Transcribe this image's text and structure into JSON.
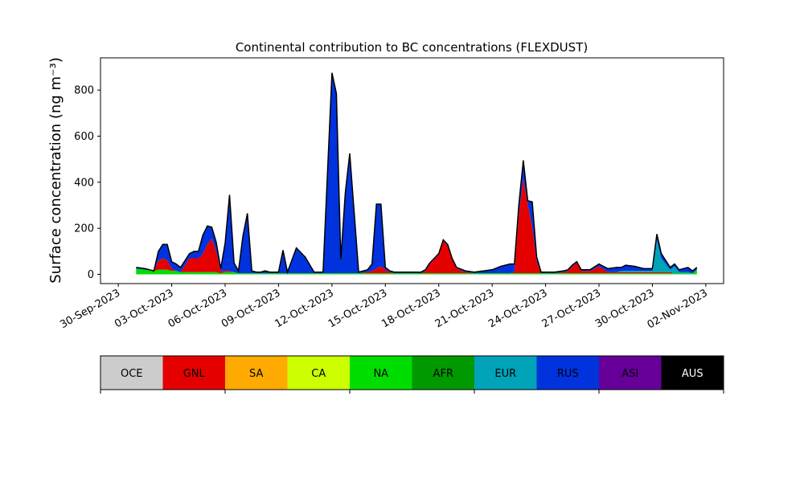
{
  "chart_data": {
    "type": "area",
    "title": "Continental contribution to BC concentrations (FLEXDUST)",
    "ylabel": "Surface concentration (ng m⁻³)",
    "xlabel": "",
    "xlim": [
      "2023-09-29",
      "2023-11-03"
    ],
    "ylim": [
      -40,
      940
    ],
    "y_ticks": [
      0,
      200,
      400,
      600,
      800
    ],
    "x_ticks": [
      "30-Sep-2023",
      "03-Oct-2023",
      "06-Oct-2023",
      "09-Oct-2023",
      "12-Oct-2023",
      "15-Oct-2023",
      "18-Oct-2023",
      "21-Oct-2023",
      "24-Oct-2023",
      "27-Oct-2023",
      "30-Oct-2023",
      "02-Nov-2023"
    ],
    "x": [
      "2023-10-01",
      "2023-10-01T12",
      "2023-10-02",
      "2023-10-02T06",
      "2023-10-02T12",
      "2023-10-02T18",
      "2023-10-03",
      "2023-10-03T06",
      "2023-10-03T12",
      "2023-10-04",
      "2023-10-04T06",
      "2023-10-04T12",
      "2023-10-04T18",
      "2023-10-05",
      "2023-10-05T06",
      "2023-10-05T12",
      "2023-10-05T18",
      "2023-10-06",
      "2023-10-06T06",
      "2023-10-06T12",
      "2023-10-06T18",
      "2023-10-07",
      "2023-10-07T06",
      "2023-10-07T12",
      "2023-10-07T18",
      "2023-10-08",
      "2023-10-08T06",
      "2023-10-08T12",
      "2023-10-08T18",
      "2023-10-09",
      "2023-10-09T06",
      "2023-10-09T12",
      "2023-10-10",
      "2023-10-10T12",
      "2023-10-11",
      "2023-10-11T06",
      "2023-10-11T12",
      "2023-10-12",
      "2023-10-12T06",
      "2023-10-12T12",
      "2023-10-12T18",
      "2023-10-13",
      "2023-10-13T12",
      "2023-10-14",
      "2023-10-14T06",
      "2023-10-14T12",
      "2023-10-14T18",
      "2023-10-15",
      "2023-10-15T06",
      "2023-10-15T12",
      "2023-10-15T18",
      "2023-10-16",
      "2023-10-16T06",
      "2023-10-16T12",
      "2023-10-16T18",
      "2023-10-17",
      "2023-10-17T06",
      "2023-10-17T12",
      "2023-10-17T18",
      "2023-10-18",
      "2023-10-18T06",
      "2023-10-18T12",
      "2023-10-18T18",
      "2023-10-19",
      "2023-10-19T12",
      "2023-10-20",
      "2023-10-20T12",
      "2023-10-21",
      "2023-10-21T12",
      "2023-10-22",
      "2023-10-22T06",
      "2023-10-22T12",
      "2023-10-22T18",
      "2023-10-23",
      "2023-10-23T06",
      "2023-10-23T12",
      "2023-10-23T18",
      "2023-10-24",
      "2023-10-24T12",
      "2023-10-25",
      "2023-10-25T06",
      "2023-10-25T12",
      "2023-10-25T18",
      "2023-10-26",
      "2023-10-26T12",
      "2023-10-27",
      "2023-10-27T12",
      "2023-10-28",
      "2023-10-28T06",
      "2023-10-28T12",
      "2023-10-29",
      "2023-10-29T12",
      "2023-10-30",
      "2023-10-30T06",
      "2023-10-30T12",
      "2023-10-31",
      "2023-10-31T06",
      "2023-10-31T12",
      "2023-11-01",
      "2023-11-01T06",
      "2023-11-01T12"
    ],
    "series": [
      {
        "name": "NA",
        "color": "#00dd00",
        "values": [
          25,
          20,
          15,
          20,
          20,
          20,
          15,
          15,
          10,
          10,
          10,
          10,
          10,
          10,
          10,
          10,
          5,
          10,
          10,
          10,
          5,
          5,
          5,
          5,
          5,
          5,
          5,
          5,
          5,
          5,
          5,
          5,
          5,
          5,
          5,
          5,
          5,
          5,
          5,
          5,
          5,
          5,
          5,
          5,
          5,
          5,
          5,
          5,
          5,
          5,
          5,
          5,
          5,
          5,
          5,
          5,
          5,
          5,
          5,
          5,
          5,
          5,
          5,
          5,
          5,
          5,
          5,
          5,
          5,
          5,
          5,
          5,
          5,
          5,
          5,
          5,
          5,
          5,
          5,
          5,
          5,
          5,
          5,
          5,
          5,
          5,
          5,
          5,
          5,
          5,
          5,
          5,
          5,
          5,
          5,
          5,
          5,
          5,
          5,
          5,
          20
        ]
      },
      {
        "name": "GNL",
        "color": "#e50000",
        "values": [
          0,
          0,
          0,
          40,
          50,
          40,
          10,
          0,
          0,
          60,
          60,
          60,
          80,
          120,
          145,
          90,
          10,
          5,
          5,
          0,
          0,
          0,
          0,
          0,
          0,
          0,
          0,
          0,
          0,
          0,
          0,
          0,
          0,
          0,
          0,
          0,
          0,
          0,
          0,
          0,
          0,
          0,
          0,
          5,
          10,
          20,
          30,
          15,
          5,
          0,
          0,
          0,
          0,
          0,
          0,
          0,
          10,
          40,
          60,
          80,
          140,
          120,
          60,
          20,
          5,
          0,
          0,
          0,
          0,
          0,
          5,
          260,
          410,
          300,
          200,
          50,
          0,
          0,
          0,
          5,
          10,
          30,
          45,
          10,
          10,
          30,
          5,
          5,
          5,
          5,
          5,
          5,
          5,
          5,
          5,
          5,
          0,
          0,
          0,
          0,
          0
        ]
      },
      {
        "name": "EUR",
        "color": "#00a3b8",
        "values": [
          0,
          0,
          0,
          0,
          0,
          0,
          0,
          0,
          0,
          0,
          0,
          0,
          0,
          0,
          0,
          0,
          0,
          0,
          0,
          0,
          0,
          0,
          0,
          0,
          0,
          0,
          0,
          0,
          0,
          0,
          0,
          0,
          0,
          0,
          0,
          0,
          0,
          0,
          0,
          0,
          0,
          0,
          0,
          0,
          0,
          0,
          0,
          0,
          0,
          0,
          0,
          0,
          0,
          0,
          0,
          0,
          0,
          0,
          0,
          0,
          0,
          0,
          0,
          0,
          0,
          0,
          0,
          0,
          0,
          0,
          0,
          0,
          0,
          0,
          0,
          0,
          0,
          0,
          0,
          0,
          0,
          0,
          0,
          0,
          0,
          0,
          0,
          0,
          5,
          5,
          5,
          5,
          5,
          140,
          60,
          10,
          30,
          5,
          5,
          0,
          0
        ]
      },
      {
        "name": "RUS",
        "color": "#0033dd",
        "values": [
          5,
          5,
          0,
          40,
          60,
          70,
          30,
          30,
          20,
          20,
          30,
          30,
          80,
          80,
          50,
          40,
          10,
          120,
          330,
          40,
          10,
          160,
          260,
          10,
          5,
          5,
          10,
          5,
          5,
          5,
          100,
          5,
          110,
          70,
          5,
          5,
          5,
          870,
          780,
          60,
          350,
          520,
          5,
          10,
          30,
          280,
          270,
          10,
          5,
          5,
          5,
          5,
          5,
          5,
          5,
          5,
          5,
          5,
          5,
          5,
          5,
          5,
          5,
          5,
          5,
          5,
          10,
          15,
          30,
          40,
          35,
          40,
          80,
          15,
          110,
          20,
          5,
          5,
          5,
          5,
          5,
          5,
          5,
          5,
          5,
          10,
          15,
          20,
          15,
          25,
          20,
          10,
          10,
          25,
          20,
          10,
          10,
          10,
          20,
          10,
          10
        ]
      }
    ],
    "legend": [
      "OCE",
      "GNL",
      "SA",
      "CA",
      "NA",
      "AFR",
      "EUR",
      "RUS",
      "ASI",
      "AUS"
    ],
    "legend_colors": [
      "#cccccc",
      "#e50000",
      "#ffaa00",
      "#ccff00",
      "#00dd00",
      "#009900",
      "#00a3b8",
      "#0033dd",
      "#660099",
      "#000000"
    ],
    "legend_text_colors": [
      "#000000",
      "#000000",
      "#000000",
      "#000000",
      "#000000",
      "#000000",
      "#000000",
      "#000000",
      "#000000",
      "#ffffff"
    ]
  }
}
